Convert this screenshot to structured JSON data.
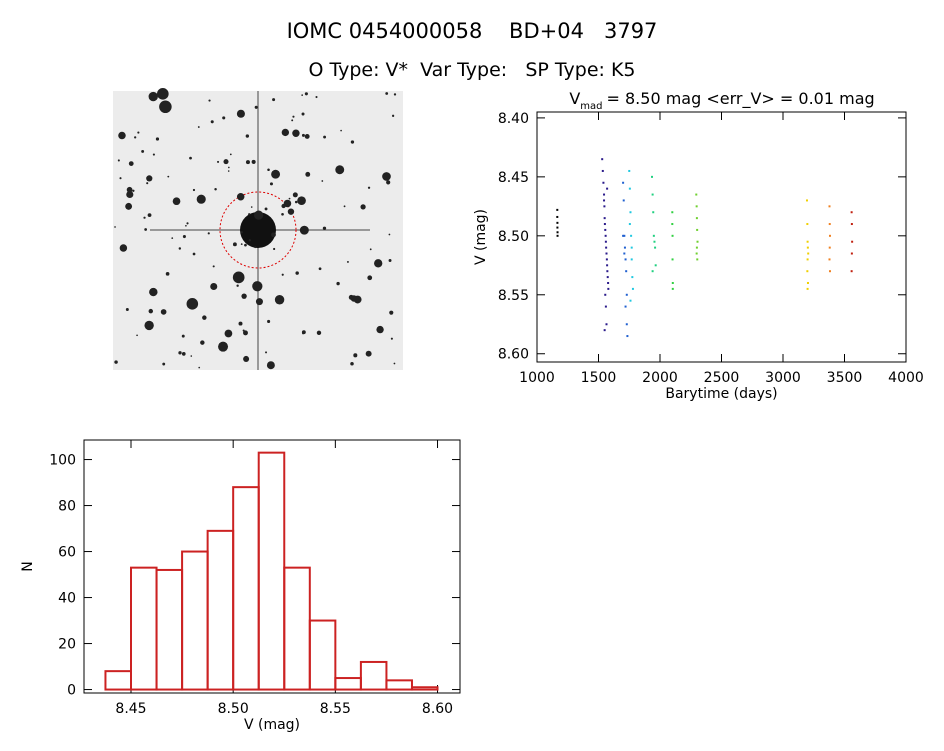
{
  "header": {
    "title": "IOMC 0454000058    BD+04   3797",
    "subtitle": "O Type: V*  Var Type:   SP Type: K5"
  },
  "chart_data": [
    {
      "type": "scatter",
      "title_main": "V",
      "title_sub": "mad",
      "title_rest": "= 8.50 mag <err_V> = 0.01 mag",
      "x_label": "Barytime (days)",
      "y_label": "V (mag)",
      "xlim": [
        1000,
        4000
      ],
      "xticks": [
        1000,
        1500,
        2000,
        2500,
        3000,
        3500,
        4000
      ],
      "ylim": [
        8.607,
        8.395
      ],
      "yticks": [
        {
          "value": 8.4,
          "label": "8.40"
        },
        8.45,
        {
          "value": 8.5,
          "label": "8.50"
        },
        8.55,
        {
          "value": 8.6,
          "label": "8.60"
        }
      ],
      "series": [
        {
          "color": "#000000",
          "x": [
            1165,
            1165,
            1166,
            1166,
            1167,
            1167
          ],
          "y": [
            8.478,
            8.484,
            8.489,
            8.493,
            8.497,
            8.5
          ]
        },
        {
          "color": "#2a1a8a",
          "x": [
            1530,
            1535,
            1540,
            1545,
            1548,
            1550,
            1552,
            1555,
            1558,
            1560,
            1562,
            1565,
            1568,
            1570,
            1572,
            1575,
            1578,
            1580,
            1555,
            1560,
            1565,
            1550,
            1545,
            1570
          ],
          "y": [
            8.435,
            8.445,
            8.455,
            8.465,
            8.475,
            8.485,
            8.49,
            8.495,
            8.5,
            8.505,
            8.51,
            8.515,
            8.52,
            8.525,
            8.53,
            8.535,
            8.54,
            8.545,
            8.55,
            8.56,
            8.575,
            8.58,
            8.47,
            8.46
          ]
        },
        {
          "color": "#2060d0",
          "x": [
            1700,
            1705,
            1710,
            1715,
            1720,
            1725,
            1730,
            1735,
            1700,
            1710,
            1720,
            1730
          ],
          "y": [
            8.455,
            8.47,
            8.5,
            8.51,
            8.52,
            8.53,
            8.55,
            8.585,
            8.5,
            8.515,
            8.56,
            8.575
          ]
        },
        {
          "color": "#20c8e0",
          "x": [
            1750,
            1755,
            1760,
            1765,
            1770,
            1775,
            1780,
            1760,
            1770,
            1755
          ],
          "y": [
            8.445,
            8.46,
            8.48,
            8.5,
            8.52,
            8.535,
            8.545,
            8.555,
            8.51,
            8.49
          ]
        },
        {
          "color": "#20d080",
          "x": [
            1935,
            1940,
            1945,
            1950,
            1955,
            1960,
            1965,
            1940
          ],
          "y": [
            8.45,
            8.465,
            8.48,
            8.5,
            8.505,
            8.51,
            8.525,
            8.53
          ]
        },
        {
          "color": "#30d040",
          "x": [
            2100,
            2100,
            2102,
            2102,
            2104,
            2104
          ],
          "y": [
            8.48,
            8.49,
            8.5,
            8.52,
            8.54,
            8.545
          ]
        },
        {
          "color": "#70d030",
          "x": [
            2295,
            2298,
            2300,
            2302,
            2305,
            2300,
            2298,
            2303
          ],
          "y": [
            8.465,
            8.475,
            8.485,
            8.495,
            8.505,
            8.51,
            8.515,
            8.52
          ]
        },
        {
          "color": "#f0d000",
          "x": [
            3195,
            3198,
            3200,
            3202,
            3205,
            3200,
            3198,
            3203,
            3200
          ],
          "y": [
            8.47,
            8.49,
            8.505,
            8.51,
            8.515,
            8.52,
            8.53,
            8.54,
            8.545
          ]
        },
        {
          "color": "#f08020",
          "x": [
            3378,
            3380,
            3382,
            3380,
            3378,
            3382
          ],
          "y": [
            8.475,
            8.49,
            8.5,
            8.51,
            8.52,
            8.53
          ]
        },
        {
          "color": "#c02010",
          "x": [
            3558,
            3560,
            3562,
            3560,
            3558
          ],
          "y": [
            8.48,
            8.49,
            8.505,
            8.515,
            8.53
          ]
        }
      ]
    },
    {
      "type": "histogram",
      "x_label": "V (mag)",
      "y_label": "N",
      "color": "#cc2222",
      "bins": [
        8.4375,
        8.45,
        8.4625,
        8.475,
        8.4875,
        8.5,
        8.5125,
        8.525,
        8.5375,
        8.55,
        8.5625,
        8.575,
        8.5875,
        8.6
      ],
      "values": [
        8,
        53,
        52,
        60,
        69,
        88,
        103,
        53,
        30,
        5,
        12,
        4,
        1
      ],
      "xlim": [
        8.427,
        8.611
      ],
      "xticks": [
        8.45,
        {
          "value": 8.5,
          "label": "8.50"
        },
        8.55,
        {
          "value": 8.6,
          "label": "8.60"
        }
      ],
      "ylim": [
        -1.5,
        108.5
      ],
      "yticks": [
        0,
        20,
        40,
        60,
        80,
        100
      ]
    }
  ]
}
